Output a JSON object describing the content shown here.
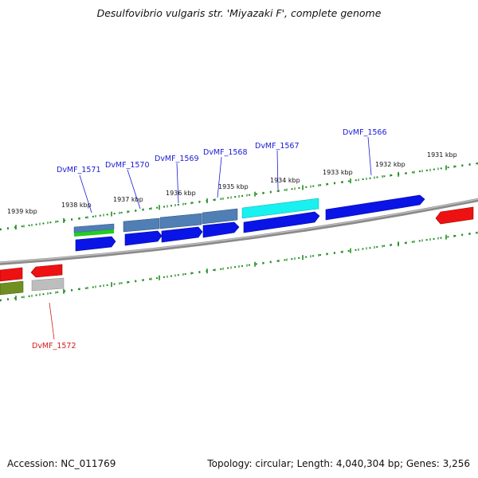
{
  "title": "Desulfovibrio vulgaris str. 'Miyazaki F', complete genome",
  "footer": {
    "accession": "Accession: NC_011769",
    "summary": "Topology: circular; Length: 4,040,304 bp; Genes: 3,256"
  },
  "colors": {
    "background": "#ffffff",
    "backbone": "#7f7f7f",
    "ruler": "#1f8a1f",
    "forward_gene": "#0a14e6",
    "forward_feature_steel": "#4f7fb5",
    "forward_feature_cyan": "#19f0f0",
    "forward_feature_green": "#22cc22",
    "reverse_gene": "#ee1111",
    "reverse_feature_olive": "#6f8f1f",
    "reverse_feature_gray": "#bdbdbd",
    "label_forward": "#1a1ad6",
    "label_reverse": "#d61a1a"
  },
  "ruler_ticks": [
    {
      "label": "1939 kbp"
    },
    {
      "label": "1938 kbp"
    },
    {
      "label": "1937 kbp"
    },
    {
      "label": "1936 kbp"
    },
    {
      "label": "1935 kbp"
    },
    {
      "label": "1934 kbp"
    },
    {
      "label": "1933 kbp"
    },
    {
      "label": "1932 kbp"
    },
    {
      "label": "1931 kbp"
    }
  ],
  "genes": [
    {
      "label": "DvMF_1566",
      "strand": "+"
    },
    {
      "label": "DvMF_1567",
      "strand": "+"
    },
    {
      "label": "DvMF_1568",
      "strand": "+"
    },
    {
      "label": "DvMF_1569",
      "strand": "+"
    },
    {
      "label": "DvMF_1570",
      "strand": "+"
    },
    {
      "label": "DvMF_1571",
      "strand": "+"
    },
    {
      "label": "DvMF_1572",
      "strand": "-"
    }
  ]
}
